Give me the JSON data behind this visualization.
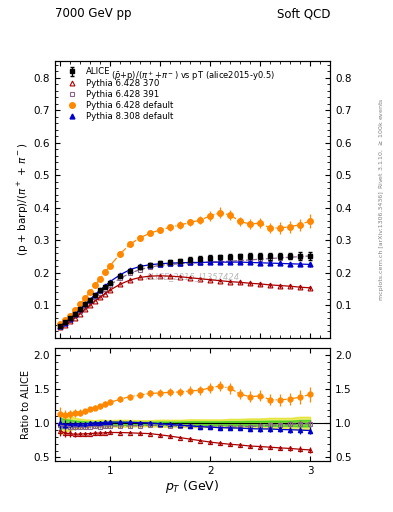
{
  "title_left": "7000 GeV pp",
  "title_right": "Soft QCD",
  "subtitle": "($\\bar{p}$+p)/($\\pi^+$+$\\pi^-$) vs pT (alice2015-y0.5)",
  "ylabel_main": "(p + barp)/($\\pi^+$ + $\\pi^-$)",
  "ylabel_ratio": "Ratio to ALICE",
  "xlabel": "$p_T$ (GeV)",
  "right_label_top": "Rivet 3.1.10, $\\geq$ 100k events",
  "right_label_bot": "mcplots.cern.ch [arXiv:1306.3436]",
  "watermark": "ALICE_2015_I1357424",
  "ylim_main": [
    0.0,
    0.85
  ],
  "ylim_ratio": [
    0.45,
    2.1
  ],
  "yticks_main": [
    0.1,
    0.2,
    0.3,
    0.4,
    0.5,
    0.6,
    0.7,
    0.8
  ],
  "yticks_ratio": [
    0.5,
    1.0,
    1.5,
    2.0
  ],
  "alice_x": [
    0.5,
    0.55,
    0.6,
    0.65,
    0.7,
    0.75,
    0.8,
    0.85,
    0.9,
    0.95,
    1.0,
    1.1,
    1.2,
    1.3,
    1.4,
    1.5,
    1.6,
    1.7,
    1.8,
    1.9,
    2.0,
    2.1,
    2.2,
    2.3,
    2.4,
    2.5,
    2.6,
    2.7,
    2.8,
    2.9,
    3.0
  ],
  "alice_y": [
    0.037,
    0.048,
    0.06,
    0.074,
    0.089,
    0.104,
    0.118,
    0.132,
    0.146,
    0.158,
    0.17,
    0.191,
    0.207,
    0.218,
    0.224,
    0.23,
    0.234,
    0.238,
    0.241,
    0.244,
    0.247,
    0.249,
    0.25,
    0.251,
    0.252,
    0.252,
    0.251,
    0.252,
    0.252,
    0.252,
    0.253
  ],
  "alice_yerr": [
    0.003,
    0.003,
    0.003,
    0.003,
    0.003,
    0.003,
    0.003,
    0.003,
    0.004,
    0.004,
    0.004,
    0.005,
    0.005,
    0.005,
    0.005,
    0.006,
    0.006,
    0.006,
    0.007,
    0.007,
    0.007,
    0.007,
    0.008,
    0.008,
    0.009,
    0.009,
    0.01,
    0.01,
    0.01,
    0.012,
    0.012
  ],
  "p6_370_x": [
    0.5,
    0.55,
    0.6,
    0.65,
    0.7,
    0.75,
    0.8,
    0.85,
    0.9,
    0.95,
    1.0,
    1.1,
    1.2,
    1.3,
    1.4,
    1.5,
    1.6,
    1.7,
    1.8,
    1.9,
    2.0,
    2.1,
    2.2,
    2.3,
    2.4,
    2.5,
    2.6,
    2.7,
    2.8,
    2.9,
    3.0
  ],
  "p6_370_y": [
    0.033,
    0.041,
    0.051,
    0.062,
    0.075,
    0.088,
    0.1,
    0.113,
    0.125,
    0.136,
    0.147,
    0.165,
    0.178,
    0.186,
    0.19,
    0.191,
    0.19,
    0.188,
    0.185,
    0.182,
    0.179,
    0.176,
    0.173,
    0.171,
    0.168,
    0.166,
    0.163,
    0.161,
    0.159,
    0.156,
    0.154
  ],
  "p6_370_yerr": [
    0.001,
    0.001,
    0.001,
    0.001,
    0.001,
    0.001,
    0.001,
    0.001,
    0.001,
    0.001,
    0.002,
    0.002,
    0.002,
    0.002,
    0.002,
    0.003,
    0.003,
    0.003,
    0.003,
    0.003,
    0.004,
    0.004,
    0.004,
    0.004,
    0.005,
    0.005,
    0.005,
    0.006,
    0.006,
    0.007,
    0.007
  ],
  "p6_391_x": [
    0.5,
    0.55,
    0.6,
    0.65,
    0.7,
    0.75,
    0.8,
    0.85,
    0.9,
    0.95,
    1.0,
    1.1,
    1.2,
    1.3,
    1.4,
    1.5,
    1.6,
    1.7,
    1.8,
    1.9,
    2.0,
    2.1,
    2.2,
    2.3,
    2.4,
    2.5,
    2.6,
    2.7,
    2.8,
    2.9,
    3.0
  ],
  "p6_391_y": [
    0.036,
    0.046,
    0.057,
    0.07,
    0.084,
    0.098,
    0.112,
    0.126,
    0.139,
    0.151,
    0.163,
    0.183,
    0.199,
    0.21,
    0.218,
    0.223,
    0.226,
    0.228,
    0.23,
    0.231,
    0.233,
    0.234,
    0.236,
    0.238,
    0.24,
    0.242,
    0.244,
    0.246,
    0.248,
    0.25,
    0.252
  ],
  "p6_391_yerr": [
    0.001,
    0.001,
    0.001,
    0.001,
    0.001,
    0.001,
    0.001,
    0.001,
    0.001,
    0.001,
    0.002,
    0.002,
    0.002,
    0.002,
    0.002,
    0.003,
    0.003,
    0.003,
    0.003,
    0.003,
    0.004,
    0.004,
    0.004,
    0.004,
    0.005,
    0.005,
    0.005,
    0.006,
    0.006,
    0.007,
    0.007
  ],
  "p6_def_x": [
    0.5,
    0.55,
    0.6,
    0.65,
    0.7,
    0.75,
    0.8,
    0.85,
    0.9,
    0.95,
    1.0,
    1.1,
    1.2,
    1.3,
    1.4,
    1.5,
    1.6,
    1.7,
    1.8,
    1.9,
    2.0,
    2.1,
    2.2,
    2.3,
    2.4,
    2.5,
    2.6,
    2.7,
    2.8,
    2.9,
    3.0
  ],
  "p6_def_y": [
    0.042,
    0.054,
    0.068,
    0.085,
    0.103,
    0.122,
    0.142,
    0.162,
    0.182,
    0.202,
    0.222,
    0.258,
    0.288,
    0.308,
    0.322,
    0.332,
    0.34,
    0.347,
    0.355,
    0.362,
    0.375,
    0.385,
    0.378,
    0.358,
    0.35,
    0.353,
    0.338,
    0.338,
    0.342,
    0.348,
    0.36
  ],
  "p6_def_yerr": [
    0.001,
    0.001,
    0.002,
    0.002,
    0.002,
    0.002,
    0.003,
    0.003,
    0.003,
    0.004,
    0.005,
    0.005,
    0.006,
    0.007,
    0.008,
    0.009,
    0.01,
    0.011,
    0.012,
    0.013,
    0.015,
    0.016,
    0.016,
    0.015,
    0.016,
    0.016,
    0.016,
    0.017,
    0.018,
    0.019,
    0.022
  ],
  "p8_def_x": [
    0.5,
    0.55,
    0.6,
    0.65,
    0.7,
    0.75,
    0.8,
    0.85,
    0.9,
    0.95,
    1.0,
    1.1,
    1.2,
    1.3,
    1.4,
    1.5,
    1.6,
    1.7,
    1.8,
    1.9,
    2.0,
    2.1,
    2.2,
    2.3,
    2.4,
    2.5,
    2.6,
    2.7,
    2.8,
    2.9,
    3.0
  ],
  "p8_def_y": [
    0.037,
    0.047,
    0.059,
    0.073,
    0.088,
    0.103,
    0.118,
    0.133,
    0.147,
    0.16,
    0.173,
    0.194,
    0.21,
    0.22,
    0.225,
    0.228,
    0.23,
    0.231,
    0.232,
    0.232,
    0.233,
    0.233,
    0.233,
    0.233,
    0.232,
    0.231,
    0.23,
    0.229,
    0.228,
    0.227,
    0.226
  ],
  "p8_def_yerr": [
    0.001,
    0.001,
    0.001,
    0.001,
    0.001,
    0.001,
    0.001,
    0.001,
    0.001,
    0.001,
    0.002,
    0.002,
    0.002,
    0.002,
    0.002,
    0.003,
    0.003,
    0.003,
    0.003,
    0.003,
    0.004,
    0.004,
    0.004,
    0.004,
    0.005,
    0.005,
    0.005,
    0.006,
    0.006,
    0.007,
    0.007
  ],
  "color_alice": "#000000",
  "color_p6_370": "#aa0000",
  "color_p6_391": "#886688",
  "color_p6_def": "#ff8800",
  "color_p8_def": "#0000cc",
  "band_green": "#00cc00",
  "band_yellow": "#dddd00",
  "band_green_alpha": 0.5,
  "band_yellow_alpha": 0.6
}
